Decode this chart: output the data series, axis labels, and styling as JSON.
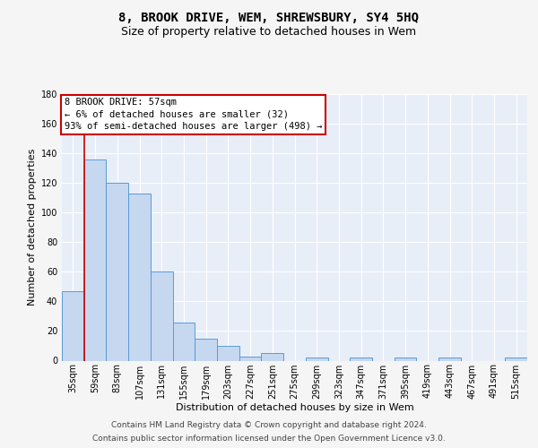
{
  "title": "8, BROOK DRIVE, WEM, SHREWSBURY, SY4 5HQ",
  "subtitle": "Size of property relative to detached houses in Wem",
  "xlabel": "Distribution of detached houses by size in Wem",
  "ylabel": "Number of detached properties",
  "footer_line1": "Contains HM Land Registry data © Crown copyright and database right 2024.",
  "footer_line2": "Contains public sector information licensed under the Open Government Licence v3.0.",
  "categories": [
    "35sqm",
    "59sqm",
    "83sqm",
    "107sqm",
    "131sqm",
    "155sqm",
    "179sqm",
    "203sqm",
    "227sqm",
    "251sqm",
    "275sqm",
    "299sqm",
    "323sqm",
    "347sqm",
    "371sqm",
    "395sqm",
    "419sqm",
    "443sqm",
    "467sqm",
    "491sqm",
    "515sqm"
  ],
  "values": [
    47,
    136,
    120,
    113,
    60,
    26,
    15,
    10,
    3,
    5,
    0,
    2,
    0,
    2,
    0,
    2,
    0,
    2,
    0,
    0,
    2
  ],
  "bar_color": "#c5d8f0",
  "bar_edge_color": "#5b9bd5",
  "highlight_line_color": "#cc0000",
  "annotation_text": "8 BROOK DRIVE: 57sqm\n← 6% of detached houses are smaller (32)\n93% of semi-detached houses are larger (498) →",
  "annotation_box_color": "#ffffff",
  "annotation_box_edge": "#cc0000",
  "ylim": [
    0,
    180
  ],
  "yticks": [
    0,
    20,
    40,
    60,
    80,
    100,
    120,
    140,
    160,
    180
  ],
  "background_color": "#e8eef8",
  "grid_color": "#ffffff",
  "fig_background": "#f5f5f5",
  "title_fontsize": 10,
  "subtitle_fontsize": 9,
  "axis_label_fontsize": 8,
  "tick_fontsize": 7,
  "footer_fontsize": 6.5,
  "annotation_fontsize": 7.5
}
